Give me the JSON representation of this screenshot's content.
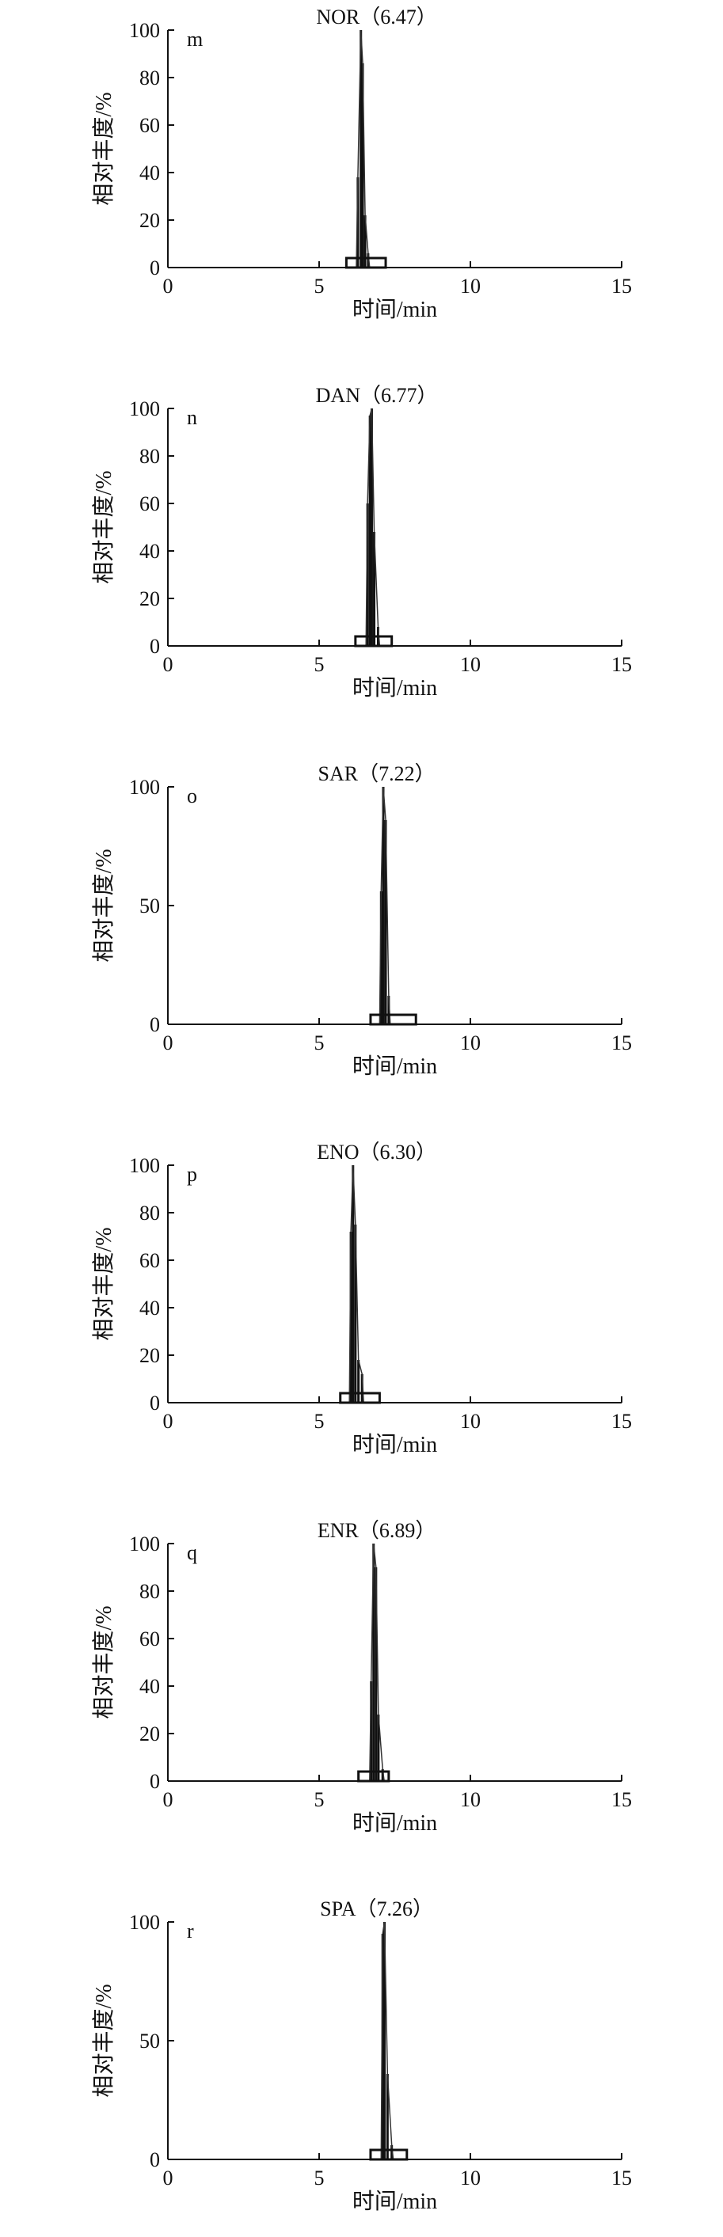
{
  "chart_data": [
    {
      "type": "line",
      "panel_letter": "m",
      "title": "NOR（6.47）",
      "xlabel": "时间/min",
      "ylabel": "相对丰度/%",
      "xlim": [
        0,
        15
      ],
      "ylim": [
        0,
        100
      ],
      "x_ticks": [
        "0",
        "5",
        "10",
        "15"
      ],
      "y_ticks": [
        "0",
        "20",
        "40",
        "60",
        "80",
        "100"
      ],
      "retention_time": 6.47,
      "peaks": [
        {
          "x": 6.28,
          "y": 38
        },
        {
          "x": 6.38,
          "y": 100
        },
        {
          "x": 6.44,
          "y": 86
        },
        {
          "x": 6.52,
          "y": 22
        },
        {
          "x": 6.62,
          "y": 6
        }
      ],
      "baseline_box": {
        "x_start": 5.9,
        "x_end": 7.2,
        "height": 4
      }
    },
    {
      "type": "line",
      "panel_letter": "n",
      "title": "DAN（6.77）",
      "xlabel": "时间/min",
      "ylabel": "相对丰度/%",
      "xlim": [
        0,
        15
      ],
      "ylim": [
        0,
        100
      ],
      "x_ticks": [
        "0",
        "5",
        "10",
        "15"
      ],
      "y_ticks": [
        "0",
        "20",
        "40",
        "60",
        "80",
        "100"
      ],
      "retention_time": 6.77,
      "peaks": [
        {
          "x": 6.6,
          "y": 60
        },
        {
          "x": 6.68,
          "y": 97
        },
        {
          "x": 6.74,
          "y": 100
        },
        {
          "x": 6.82,
          "y": 48
        },
        {
          "x": 6.95,
          "y": 8
        }
      ],
      "baseline_box": {
        "x_start": 6.2,
        "x_end": 7.4,
        "height": 4
      }
    },
    {
      "type": "line",
      "panel_letter": "o",
      "title": "SAR（7.22）",
      "xlabel": "时间/min",
      "ylabel": "相对丰度/%",
      "xlim": [
        0,
        15
      ],
      "ylim": [
        0,
        100
      ],
      "x_ticks": [
        "0",
        "5",
        "10",
        "15"
      ],
      "y_ticks": [
        "0",
        "50",
        "100"
      ],
      "retention_time": 7.22,
      "peaks": [
        {
          "x": 7.05,
          "y": 56
        },
        {
          "x": 7.12,
          "y": 100
        },
        {
          "x": 7.2,
          "y": 86
        },
        {
          "x": 7.3,
          "y": 12
        }
      ],
      "baseline_box": {
        "x_start": 6.7,
        "x_end": 8.2,
        "height": 4
      }
    },
    {
      "type": "line",
      "panel_letter": "p",
      "title": "ENO（6.30）",
      "xlabel": "时间/min",
      "ylabel": "相对丰度/%",
      "xlim": [
        0,
        15
      ],
      "ylim": [
        0,
        100
      ],
      "x_ticks": [
        "0",
        "5",
        "10",
        "15"
      ],
      "y_ticks": [
        "0",
        "20",
        "40",
        "60",
        "80",
        "100"
      ],
      "retention_time": 6.3,
      "peaks": [
        {
          "x": 6.05,
          "y": 72
        },
        {
          "x": 6.12,
          "y": 100
        },
        {
          "x": 6.2,
          "y": 75
        },
        {
          "x": 6.3,
          "y": 18
        },
        {
          "x": 6.42,
          "y": 12
        }
      ],
      "baseline_box": {
        "x_start": 5.7,
        "x_end": 7.0,
        "height": 4
      }
    },
    {
      "type": "line",
      "panel_letter": "q",
      "title": "ENR（6.89）",
      "xlabel": "时间/min",
      "ylabel": "相对丰度/%",
      "xlim": [
        0,
        15
      ],
      "ylim": [
        0,
        100
      ],
      "x_ticks": [
        "0",
        "5",
        "10",
        "15"
      ],
      "y_ticks": [
        "0",
        "20",
        "40",
        "60",
        "80",
        "100"
      ],
      "retention_time": 6.89,
      "peaks": [
        {
          "x": 6.72,
          "y": 42
        },
        {
          "x": 6.8,
          "y": 100
        },
        {
          "x": 6.88,
          "y": 90
        },
        {
          "x": 6.96,
          "y": 28
        },
        {
          "x": 7.1,
          "y": 5
        }
      ],
      "baseline_box": {
        "x_start": 6.3,
        "x_end": 7.3,
        "height": 4
      }
    },
    {
      "type": "line",
      "panel_letter": "r",
      "title": "SPA（7.26）",
      "xlabel": "时间/min",
      "ylabel": "相对丰度/%",
      "xlim": [
        0,
        15
      ],
      "ylim": [
        0,
        100
      ],
      "x_ticks": [
        "0",
        "5",
        "10",
        "15"
      ],
      "y_ticks": [
        "0",
        "50",
        "100"
      ],
      "retention_time": 7.26,
      "peaks": [
        {
          "x": 7.1,
          "y": 95
        },
        {
          "x": 7.16,
          "y": 100
        },
        {
          "x": 7.26,
          "y": 36
        },
        {
          "x": 7.4,
          "y": 6
        }
      ],
      "baseline_box": {
        "x_start": 6.7,
        "x_end": 7.9,
        "height": 4
      }
    }
  ]
}
